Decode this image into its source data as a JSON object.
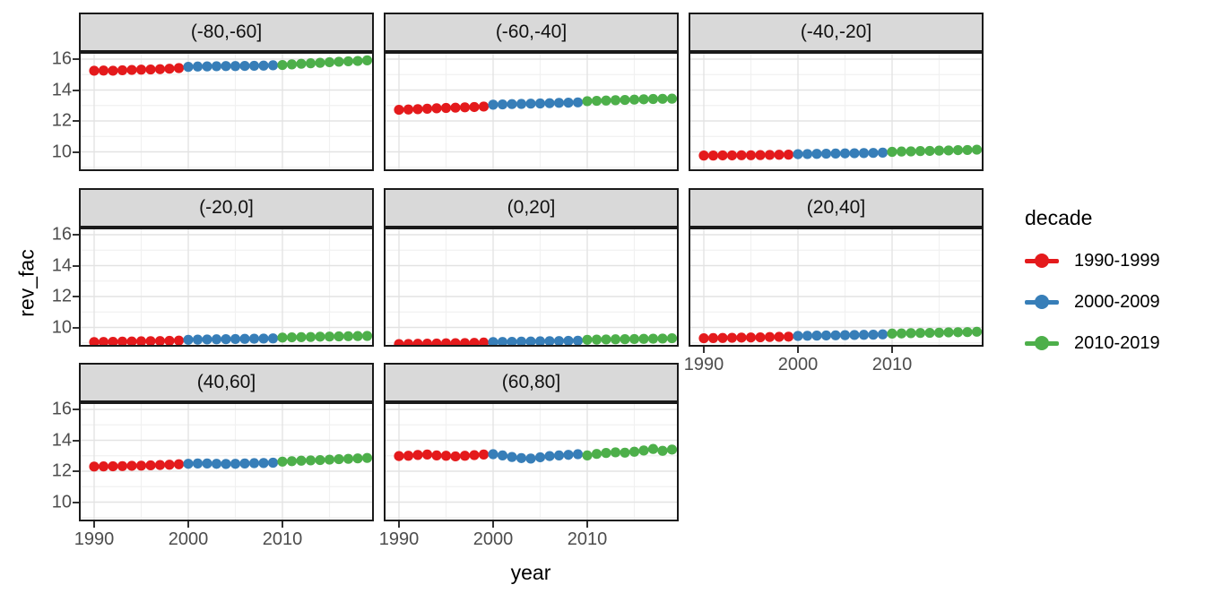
{
  "chart_data": {
    "type": "scatter",
    "title": "",
    "xlabel": "year",
    "ylabel": "rev_fac",
    "facet_grid": {
      "ncol": 3,
      "nrow": 3
    },
    "x_ticks": [
      1990,
      2000,
      2010
    ],
    "y_ticks": [
      10,
      12,
      14,
      16
    ],
    "x_minor_ticks": [
      1995,
      2005,
      2015
    ],
    "y_minor_ticks": [
      9,
      11,
      13,
      15
    ],
    "x_range": [
      1988.4,
      2020.7
    ],
    "y_range": [
      8.75,
      16.46
    ],
    "grid": true,
    "panel_background": "#FFFFFF",
    "grid_major_color": "#E3E3E3",
    "grid_minor_color": "#F1F1F1",
    "strip_fill": "#D9D9D9",
    "border_color": "#1A1A1A",
    "tick_label_color": "#4D4D4D",
    "legend": {
      "title": "decade",
      "position": "right",
      "entries": [
        {
          "label": "1990-1999",
          "color": "#E41A1C"
        },
        {
          "label": "2000-2009",
          "color": "#377EB8"
        },
        {
          "label": "2010-2019",
          "color": "#4DAF4A"
        }
      ]
    },
    "decades": [
      {
        "name": "1990-1999",
        "start": 1990,
        "end": 1999,
        "color": "#E41A1C"
      },
      {
        "name": "2000-2009",
        "start": 2000,
        "end": 2009,
        "color": "#377EB8"
      },
      {
        "name": "2010-2019",
        "start": 2010,
        "end": 2019,
        "color": "#4DAF4A"
      }
    ],
    "x": [
      1990,
      1991,
      1992,
      1993,
      1994,
      1995,
      1996,
      1997,
      1998,
      1999,
      2000,
      2001,
      2002,
      2003,
      2004,
      2005,
      2006,
      2007,
      2008,
      2009,
      2010,
      2011,
      2012,
      2013,
      2014,
      2015,
      2016,
      2017,
      2018,
      2019
    ],
    "facets": [
      {
        "label": "(-80,-60]",
        "values": [
          15.25,
          15.26,
          15.25,
          15.28,
          15.3,
          15.32,
          15.33,
          15.35,
          15.38,
          15.42,
          15.5,
          15.52,
          15.53,
          15.54,
          15.55,
          15.55,
          15.56,
          15.57,
          15.58,
          15.6,
          15.62,
          15.66,
          15.7,
          15.73,
          15.76,
          15.8,
          15.83,
          15.86,
          15.88,
          15.92
        ]
      },
      {
        "label": "(-60,-40]",
        "values": [
          12.72,
          12.74,
          12.76,
          12.79,
          12.82,
          12.84,
          12.86,
          12.88,
          12.9,
          12.93,
          13.05,
          13.07,
          13.09,
          13.1,
          13.12,
          13.13,
          13.15,
          13.17,
          13.18,
          13.2,
          13.28,
          13.3,
          13.32,
          13.34,
          13.36,
          13.38,
          13.4,
          13.42,
          13.43,
          13.44
        ]
      },
      {
        "label": "(-40,-20]",
        "values": [
          9.76,
          9.76,
          9.77,
          9.77,
          9.78,
          9.78,
          9.79,
          9.8,
          9.81,
          9.82,
          9.85,
          9.86,
          9.87,
          9.88,
          9.89,
          9.9,
          9.91,
          9.92,
          9.93,
          9.95,
          10.0,
          10.02,
          10.03,
          10.05,
          10.06,
          10.08,
          10.09,
          10.11,
          10.12,
          10.14
        ]
      },
      {
        "label": "(-20,0]",
        "values": [
          9.05,
          9.06,
          9.07,
          9.08,
          9.09,
          9.1,
          9.11,
          9.12,
          9.13,
          9.15,
          9.2,
          9.21,
          9.22,
          9.23,
          9.24,
          9.25,
          9.26,
          9.27,
          9.28,
          9.29,
          9.34,
          9.36,
          9.37,
          9.38,
          9.4,
          9.41,
          9.42,
          9.43,
          9.44,
          9.45
        ]
      },
      {
        "label": "(0,20]",
        "values": [
          8.92,
          8.93,
          8.94,
          8.95,
          8.96,
          8.97,
          8.98,
          8.99,
          9.0,
          9.02,
          9.05,
          9.06,
          9.07,
          9.08,
          9.09,
          9.1,
          9.11,
          9.12,
          9.13,
          9.14,
          9.2,
          9.21,
          9.22,
          9.23,
          9.24,
          9.25,
          9.26,
          9.27,
          9.28,
          9.3
        ]
      },
      {
        "label": "(20,40]",
        "values": [
          9.3,
          9.31,
          9.32,
          9.33,
          9.34,
          9.35,
          9.36,
          9.38,
          9.39,
          9.4,
          9.45,
          9.46,
          9.47,
          9.48,
          9.49,
          9.5,
          9.51,
          9.52,
          9.53,
          9.55,
          9.6,
          9.61,
          9.63,
          9.64,
          9.65,
          9.66,
          9.68,
          9.69,
          9.7,
          9.72
        ]
      },
      {
        "label": "(40,60]",
        "values": [
          12.3,
          12.31,
          12.32,
          12.33,
          12.35,
          12.36,
          12.38,
          12.4,
          12.42,
          12.45,
          12.48,
          12.5,
          12.5,
          12.48,
          12.47,
          12.48,
          12.5,
          12.52,
          12.53,
          12.55,
          12.62,
          12.65,
          12.68,
          12.7,
          12.72,
          12.75,
          12.78,
          12.8,
          12.83,
          12.86
        ]
      },
      {
        "label": "(60,80]",
        "values": [
          12.98,
          13.0,
          13.05,
          13.08,
          13.02,
          13.0,
          12.96,
          13.0,
          13.04,
          13.08,
          13.1,
          13.02,
          12.92,
          12.85,
          12.82,
          12.9,
          12.98,
          13.02,
          13.06,
          13.1,
          13.02,
          13.12,
          13.18,
          13.22,
          13.2,
          13.26,
          13.34,
          13.44,
          13.32,
          13.4
        ]
      }
    ]
  }
}
